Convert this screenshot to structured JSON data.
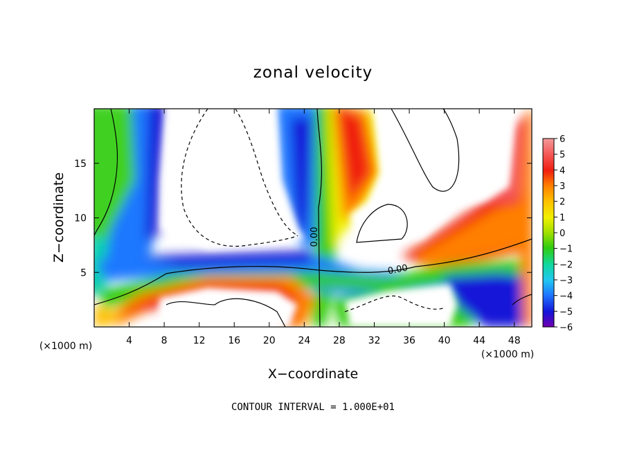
{
  "chart_data": {
    "type": "heatmap",
    "title": "zonal velocity",
    "xlabel": "X−coordinate",
    "ylabel": "Z−coordinate",
    "x_unit_label": "(×1000 m)",
    "xlim": [
      0,
      50
    ],
    "ylim": [
      0,
      20
    ],
    "x_ticks": [
      4,
      8,
      12,
      16,
      20,
      24,
      28,
      32,
      36,
      40,
      44,
      48
    ],
    "y_ticks": [
      5,
      10,
      15
    ],
    "colorbar": {
      "ticks": [
        6,
        5,
        4,
        3,
        2,
        1,
        0,
        -1,
        -2,
        -3,
        -4,
        -5,
        -6
      ],
      "min": -6,
      "max": 6,
      "colors": [
        "#f49a9a",
        "#f55a5a",
        "#f01e10",
        "#ff7f00",
        "#ffbf00",
        "#f0f000",
        "#a0e000",
        "#30cc10",
        "#10d8a0",
        "#20c8f0",
        "#1e78ff",
        "#1414d8",
        "#7000b0"
      ]
    },
    "contour_labels": [
      "0.00",
      "0.00"
    ],
    "footnote": "CONTOUR INTERVAL = 1.000E+01"
  }
}
